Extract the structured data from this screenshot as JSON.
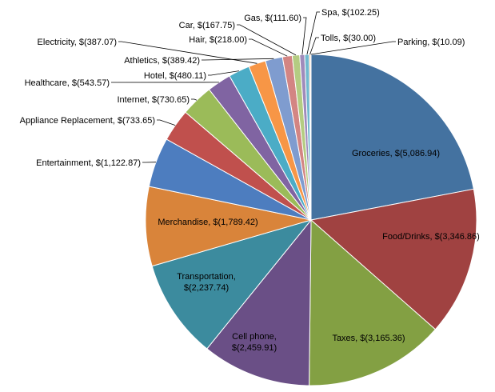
{
  "chart_data": {
    "type": "pie",
    "title": "",
    "currency_prefix": "$",
    "slices": [
      {
        "name": "Groceries",
        "value": 5086.94,
        "label": "Groceries,  $(5,086.94)",
        "color": "#4472A0"
      },
      {
        "name": "Food/Drinks",
        "value": 3346.86,
        "label": "Food/Drinks,  $(3,346.86)",
        "color": "#A04241"
      },
      {
        "name": "Taxes",
        "value": 3165.36,
        "label": "Taxes,  $(3,165.36)",
        "color": "#83A043"
      },
      {
        "name": "Cell phone",
        "value": 2459.91,
        "label": "Cell phone, $(2,459.91)",
        "color": "#6A4F86"
      },
      {
        "name": "Transportation",
        "value": 2237.74,
        "label": "Transportation, $(2,237.74)",
        "color": "#3C8B9E"
      },
      {
        "name": "Merchandise",
        "value": 1789.42,
        "label": "Merchandise,  $(1,789.42)",
        "color": "#D9843A"
      },
      {
        "name": "Entertainment",
        "value": 1122.87,
        "label": "Entertainment,  $(1,122.87)",
        "color": "#4D7DBF"
      },
      {
        "name": "Appliance Replacement",
        "value": 733.65,
        "label": "Appliance Replacement,  $(733.65)",
        "color": "#C0504D"
      },
      {
        "name": "Internet",
        "value": 730.65,
        "label": "Internet,  $(730.65)",
        "color": "#9BBB59"
      },
      {
        "name": "Healthcare",
        "value": 543.57,
        "label": "Healthcare,  $(543.57)",
        "color": "#8064A2"
      },
      {
        "name": "Hotel",
        "value": 480.11,
        "label": "Hotel,  $(480.11)",
        "color": "#4BACC6"
      },
      {
        "name": "Electricity",
        "value": 387.07,
        "label": "Electricity,  $(387.07)",
        "color": "#F79646"
      },
      {
        "name": "Athletics",
        "value": 389.42,
        "label": "Athletics,  $(389.42)",
        "color": "#7F9CCF"
      },
      {
        "name": "Hair",
        "value": 218.0,
        "label": "Hair,  $(218.00)",
        "color": "#D38583"
      },
      {
        "name": "Car",
        "value": 167.75,
        "label": "Car,  $(167.75)",
        "color": "#B4CC82"
      },
      {
        "name": "Gas",
        "value": 111.6,
        "label": "Gas,  $(111.60)",
        "color": "#A08BBB"
      },
      {
        "name": "Spa",
        "value": 102.25,
        "label": "Spa,  $(102.25)",
        "color": "#71B9CF"
      },
      {
        "name": "Tolls",
        "value": 30.0,
        "label": "Tolls,  $(30.00)",
        "color": "#F8AE74"
      },
      {
        "name": "Parking",
        "value": 10.09,
        "label": "Parking,  $(10.09)",
        "color": "#2F5597"
      }
    ],
    "legend": "none"
  }
}
